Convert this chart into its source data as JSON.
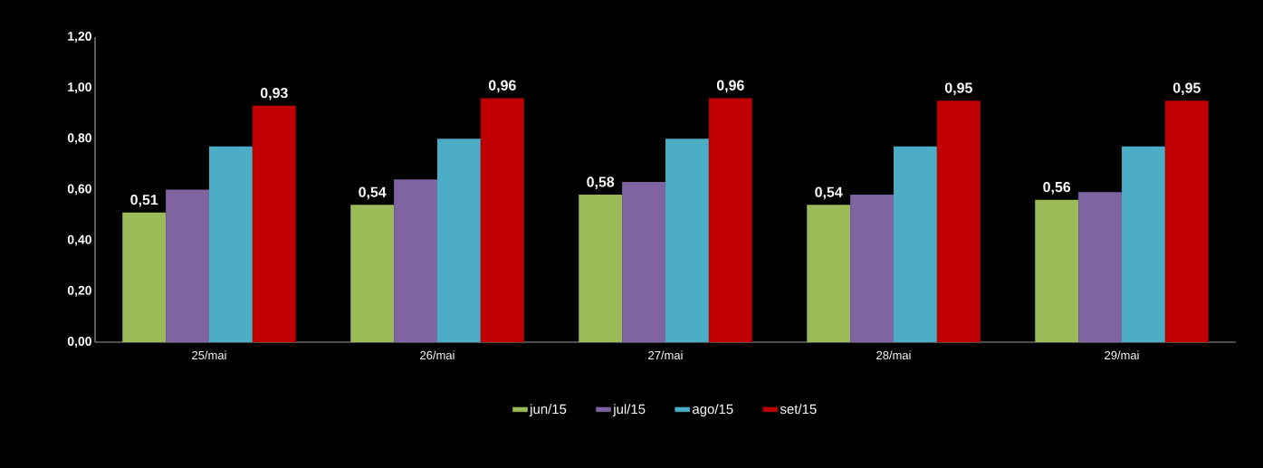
{
  "chart_data": {
    "type": "bar",
    "categories": [
      "25/mai",
      "26/mai",
      "27/mai",
      "28/mai",
      "29/mai"
    ],
    "series": [
      {
        "name": "jun/15",
        "color": "#9bbb59",
        "values": [
          0.51,
          0.54,
          0.58,
          0.54,
          0.56
        ],
        "value_labels": [
          "0,51",
          "0,54",
          "0,58",
          "0,54",
          "0,56"
        ]
      },
      {
        "name": "jul/15",
        "color": "#8064a2",
        "values": [
          0.6,
          0.64,
          0.63,
          0.58,
          0.59
        ]
      },
      {
        "name": "ago/15",
        "color": "#4bacc6",
        "values": [
          0.77,
          0.8,
          0.8,
          0.77,
          0.77
        ]
      },
      {
        "name": "set/15",
        "color": "#c00000",
        "values": [
          0.93,
          0.96,
          0.96,
          0.95,
          0.95
        ],
        "value_labels": [
          "0,93",
          "0,96",
          "0,96",
          "0,95",
          "0,95"
        ]
      }
    ],
    "ylim": [
      0,
      1.2
    ],
    "yticks": [
      {
        "value": 0,
        "label": "0,00"
      },
      {
        "value": 0.2,
        "label": "0,20"
      },
      {
        "value": 0.4,
        "label": "0,40"
      },
      {
        "value": 0.6,
        "label": "0,60"
      },
      {
        "value": 0.8,
        "label": "0,80"
      },
      {
        "value": 1.0,
        "label": "1,00"
      },
      {
        "value": 1.2,
        "label": "1,20"
      }
    ],
    "legend": "bottom",
    "grid": false
  }
}
